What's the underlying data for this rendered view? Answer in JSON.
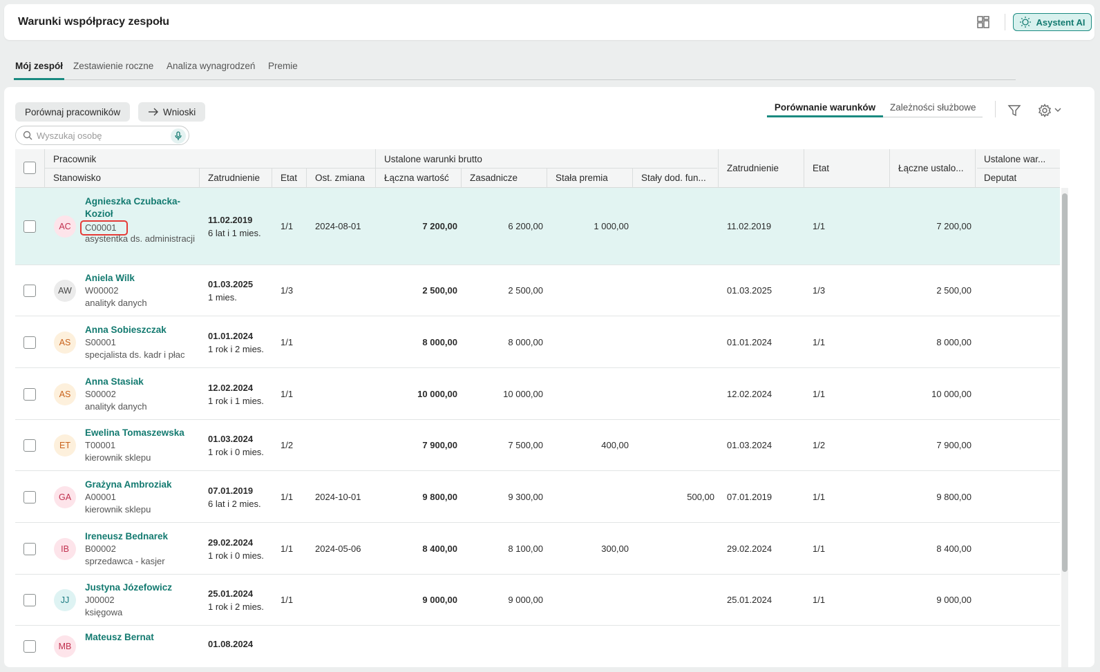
{
  "header": {
    "title": "Warunki współpracy zespołu",
    "ai_button": "Asystent AI"
  },
  "tabs": [
    {
      "label": "Mój zespół",
      "active": true
    },
    {
      "label": "Zestawienie roczne",
      "active": false
    },
    {
      "label": "Analiza wynagrodzeń",
      "active": false
    },
    {
      "label": "Premie",
      "active": false
    }
  ],
  "toolbar": {
    "compare_button": "Porównaj pracowników",
    "requests_button": "Wnioski",
    "search_placeholder": "Wyszukaj osobę"
  },
  "view_tabs": [
    {
      "label": "Porównanie warunków",
      "active": true
    },
    {
      "label": "Zależności służbowe",
      "active": false
    }
  ],
  "table": {
    "headers": {
      "employee": "Pracownik",
      "position": "Stanowisko",
      "employment": "Zatrudnienie",
      "fte": "Etat",
      "last_change": "Ost. zmiana",
      "gross_group": "Ustalone warunki brutto",
      "total_value": "Łączna wartość",
      "base": "Zasadnicze",
      "fixed_bonus": "Stała premia",
      "fixed_allowance": "Stały dod. fun...",
      "employment2": "Zatrudnienie",
      "fte2": "Etat",
      "total_set": "Łączne ustalo...",
      "set_terms": "Ustalone war...",
      "deputat": "Deputat"
    },
    "rows": [
      {
        "initials": "AC",
        "name": "Agnieszka Czubacka-Kozioł",
        "code": "C00001",
        "position": "asystentka ds. administracji",
        "hire_date": "11.02.2019",
        "tenure": "6 lat i 1 mies.",
        "fte": "1/1",
        "last_change": "2024-08-01",
        "total": "7 200,00",
        "base": "6 200,00",
        "bonus": "1 000,00",
        "allowance": "",
        "hire_date2": "11.02.2019",
        "fte2": "1/1",
        "total2": "7 200,00",
        "selected": true,
        "avatar_bg": "#fde4ea",
        "avatar_fg": "#c0304e"
      },
      {
        "initials": "AW",
        "name": "Aniela Wilk",
        "code": "W00002",
        "position": "analityk danych",
        "hire_date": "01.03.2025",
        "tenure": "1 mies.",
        "fte": "1/3",
        "last_change": "",
        "total": "2 500,00",
        "base": "2 500,00",
        "bonus": "",
        "allowance": "",
        "hire_date2": "01.03.2025",
        "fte2": "1/3",
        "total2": "2 500,00",
        "selected": false,
        "avatar_bg": "#ebebeb",
        "avatar_fg": "#444444"
      },
      {
        "initials": "AS",
        "name": "Anna Sobieszczak",
        "code": "S00001",
        "position": "specjalista ds. kadr i płac",
        "hire_date": "01.01.2024",
        "tenure": "1 rok i 2 mies.",
        "fte": "1/1",
        "last_change": "",
        "total": "8 000,00",
        "base": "8 000,00",
        "bonus": "",
        "allowance": "",
        "hire_date2": "01.01.2024",
        "fte2": "1/1",
        "total2": "8 000,00",
        "selected": false,
        "avatar_bg": "#fdf0dc",
        "avatar_fg": "#c8611a"
      },
      {
        "initials": "AS",
        "name": "Anna Stasiak",
        "code": "S00002",
        "position": "analityk danych",
        "hire_date": "12.02.2024",
        "tenure": "1 rok i 1 mies.",
        "fte": "1/1",
        "last_change": "",
        "total": "10 000,00",
        "base": "10 000,00",
        "bonus": "",
        "allowance": "",
        "hire_date2": "12.02.2024",
        "fte2": "1/1",
        "total2": "10 000,00",
        "selected": false,
        "avatar_bg": "#fdf0dc",
        "avatar_fg": "#c8611a"
      },
      {
        "initials": "ET",
        "name": "Ewelina Tomaszewska",
        "code": "T00001",
        "position": "kierownik sklepu",
        "hire_date": "01.03.2024",
        "tenure": "1 rok i 0 mies.",
        "fte": "1/2",
        "last_change": "",
        "total": "7 900,00",
        "base": "7 500,00",
        "bonus": "400,00",
        "allowance": "",
        "hire_date2": "01.03.2024",
        "fte2": "1/2",
        "total2": "7 900,00",
        "selected": false,
        "avatar_bg": "#fdf0dc",
        "avatar_fg": "#c8611a"
      },
      {
        "initials": "GA",
        "name": "Grażyna Ambroziak",
        "code": "A00001",
        "position": "kierownik sklepu",
        "hire_date": "07.01.2019",
        "tenure": "6 lat i 2 mies.",
        "fte": "1/1",
        "last_change": "2024-10-01",
        "total": "9 800,00",
        "base": "9 300,00",
        "bonus": "",
        "allowance": "500,00",
        "hire_date2": "07.01.2019",
        "fte2": "1/1",
        "total2": "9 800,00",
        "selected": false,
        "avatar_bg": "#fde4ea",
        "avatar_fg": "#c0304e"
      },
      {
        "initials": "IB",
        "name": "Ireneusz Bednarek",
        "code": "B00002",
        "position": "sprzedawca - kasjer",
        "hire_date": "29.02.2024",
        "tenure": "1 rok i 0 mies.",
        "fte": "1/1",
        "last_change": "2024-05-06",
        "total": "8 400,00",
        "base": "8 100,00",
        "bonus": "300,00",
        "allowance": "",
        "hire_date2": "29.02.2024",
        "fte2": "1/1",
        "total2": "8 400,00",
        "selected": false,
        "avatar_bg": "#fde4ea",
        "avatar_fg": "#c0304e"
      },
      {
        "initials": "JJ",
        "name": "Justyna Józefowicz",
        "code": "J00002",
        "position": "księgowa",
        "hire_date": "25.01.2024",
        "tenure": "1 rok i 2 mies.",
        "fte": "1/1",
        "last_change": "",
        "total": "9 000,00",
        "base": "9 000,00",
        "bonus": "",
        "allowance": "",
        "hire_date2": "25.01.2024",
        "fte2": "1/1",
        "total2": "9 000,00",
        "selected": false,
        "avatar_bg": "#def3f3",
        "avatar_fg": "#1a7a80"
      },
      {
        "initials": "MB",
        "name": "Mateusz Bernat",
        "code": "",
        "position": "",
        "hire_date": "01.08.2024",
        "tenure": "",
        "fte": "",
        "last_change": "",
        "total": "",
        "base": "",
        "bonus": "",
        "allowance": "",
        "hire_date2": "",
        "fte2": "",
        "total2": "",
        "selected": false,
        "avatar_bg": "#fde4ea",
        "avatar_fg": "#c0304e"
      }
    ]
  },
  "colors": {
    "accent": "#1a8a80",
    "link": "#137a70",
    "selected_row": "#e2f4f2",
    "highlight_box": "#e53935"
  }
}
